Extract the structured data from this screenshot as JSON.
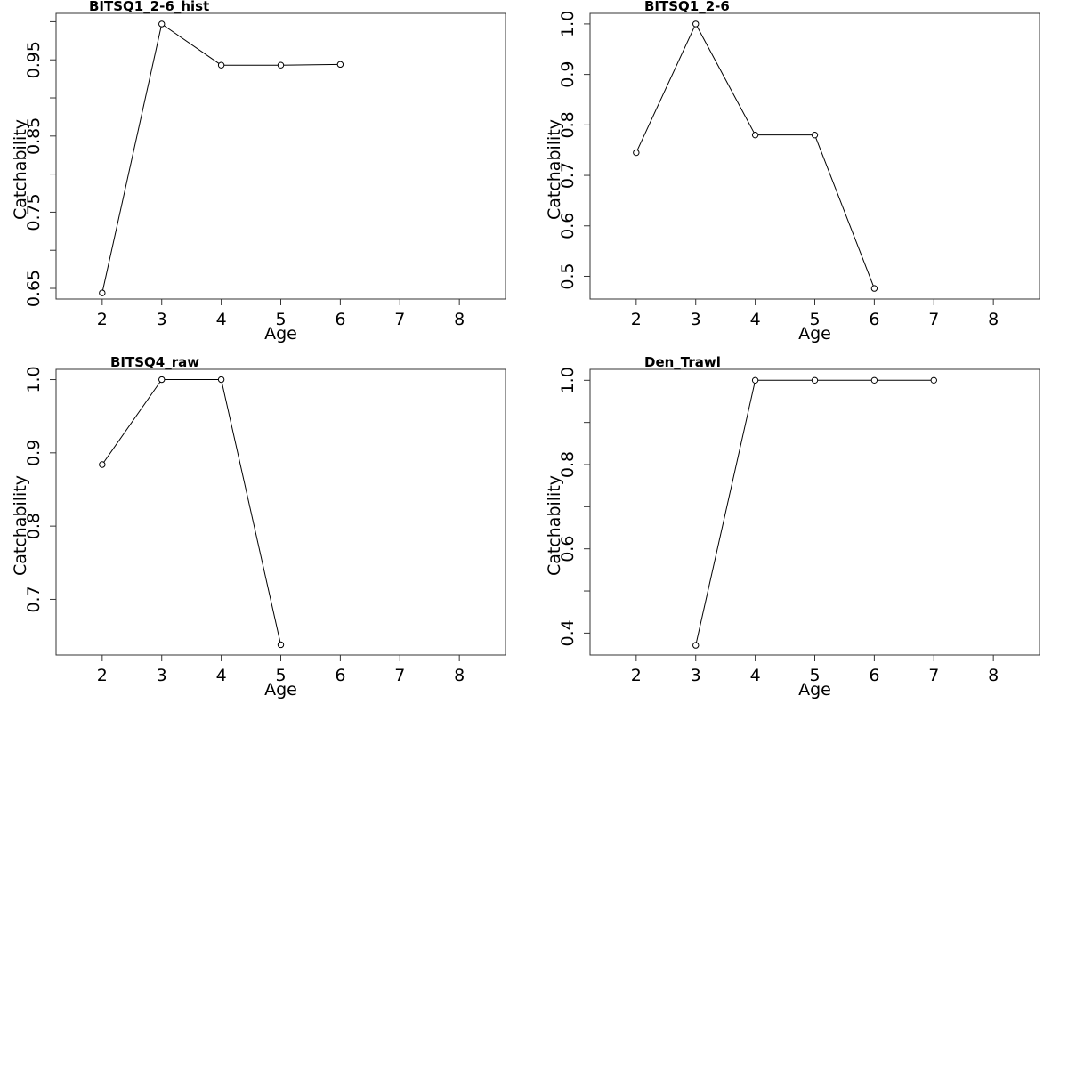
{
  "chart_data": [
    {
      "type": "line",
      "title": "BITSQ1_2-6_hist",
      "xlabel": "Age",
      "ylabel": "Catchability",
      "xticks": [
        2,
        3,
        4,
        5,
        6,
        7,
        8
      ],
      "yticks": [
        0.65,
        0.75,
        0.85,
        0.95
      ],
      "yminor": [
        0.7,
        0.8,
        0.9,
        1.0
      ],
      "xlim": [
        1.225,
        8.775
      ],
      "ylim": [
        0.636,
        1.011
      ],
      "grid": false,
      "series": [
        {
          "x": [
            2,
            3,
            4,
            5,
            6
          ],
          "values": [
            0.644,
            0.997,
            0.943,
            0.943,
            0.944
          ]
        }
      ]
    },
    {
      "type": "line",
      "title": "BITSQ1_2-6",
      "xlabel": "Age",
      "ylabel": "Catchability",
      "xticks": [
        2,
        3,
        4,
        5,
        6,
        7,
        8
      ],
      "yticks": [
        0.5,
        0.6,
        0.7,
        0.8,
        0.9,
        1.0
      ],
      "yminor": [],
      "xlim": [
        1.225,
        8.775
      ],
      "ylim": [
        0.455,
        1.021
      ],
      "grid": false,
      "series": [
        {
          "x": [
            2,
            3,
            4,
            5,
            6
          ],
          "values": [
            0.745,
            1.0,
            0.78,
            0.78,
            0.476
          ]
        }
      ]
    },
    {
      "type": "line",
      "title": "BITSQ4_raw",
      "xlabel": "Age",
      "ylabel": "Catchability",
      "xticks": [
        2,
        3,
        4,
        5,
        6,
        7,
        8
      ],
      "yticks": [
        0.7,
        0.8,
        0.9,
        1.0
      ],
      "yminor": [],
      "xlim": [
        1.225,
        8.775
      ],
      "ylim": [
        0.624,
        1.014
      ],
      "grid": false,
      "series": [
        {
          "x": [
            2,
            3,
            4,
            5
          ],
          "values": [
            0.884,
            1.0,
            1.0,
            0.638
          ]
        }
      ]
    },
    {
      "type": "line",
      "title": "Den_Trawl",
      "xlabel": "Age",
      "ylabel": "Catchability",
      "xticks": [
        2,
        3,
        4,
        5,
        6,
        7,
        8
      ],
      "yticks": [
        0.4,
        0.6,
        0.8,
        1.0
      ],
      "yminor": [
        0.5,
        0.7,
        0.9
      ],
      "xlim": [
        1.225,
        8.775
      ],
      "ylim": [
        0.348,
        1.026
      ],
      "grid": false,
      "series": [
        {
          "x": [
            3,
            4,
            5,
            6,
            7
          ],
          "values": [
            0.371,
            1.0,
            1.0,
            1.0,
            1.0
          ]
        }
      ]
    }
  ]
}
